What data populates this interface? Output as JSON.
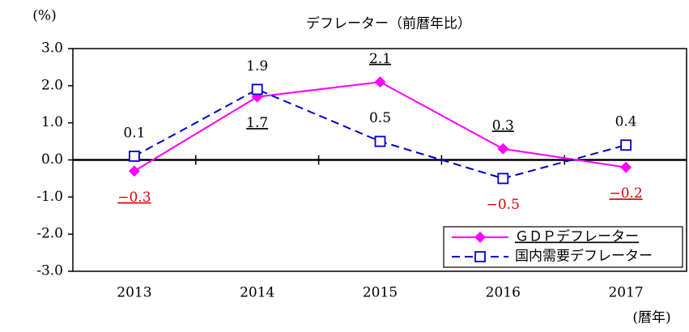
{
  "chart_data": {
    "type": "line",
    "title": "デフレーター（前暦年比）",
    "y_label": "(%)",
    "x_label": "(暦年)",
    "categories": [
      "2013",
      "2014",
      "2015",
      "2016",
      "2017"
    ],
    "series": [
      {
        "name": "ＧＤＰデフレーター",
        "color": "#ff00ff",
        "marker": "diamond",
        "line_style": "solid",
        "values": [
          -0.3,
          1.7,
          2.1,
          0.3,
          -0.2
        ],
        "value_labels": [
          "−0.3",
          "1.7",
          "2.1",
          "0.3",
          "−0.2"
        ]
      },
      {
        "name": "国内需要デフレーター",
        "color": "#0000cc",
        "marker": "square",
        "line_style": "dashed",
        "values": [
          0.1,
          1.9,
          0.5,
          -0.5,
          0.4
        ],
        "value_labels": [
          "0.1",
          "1.9",
          "0.5",
          "−0.5",
          "0.4"
        ]
      }
    ],
    "ylim": [
      -3,
      3
    ],
    "yticks": [
      {
        "value": 3,
        "label": "3.0"
      },
      {
        "value": 2,
        "label": "2.0"
      },
      {
        "value": 1,
        "label": "1.0"
      },
      {
        "value": 0,
        "label": "0.0"
      },
      {
        "value": -1,
        "label": "-1.0"
      },
      {
        "value": -2,
        "label": "-2.0"
      },
      {
        "value": -3,
        "label": "-3.0"
      }
    ],
    "grid": false,
    "legend": "lower right"
  }
}
